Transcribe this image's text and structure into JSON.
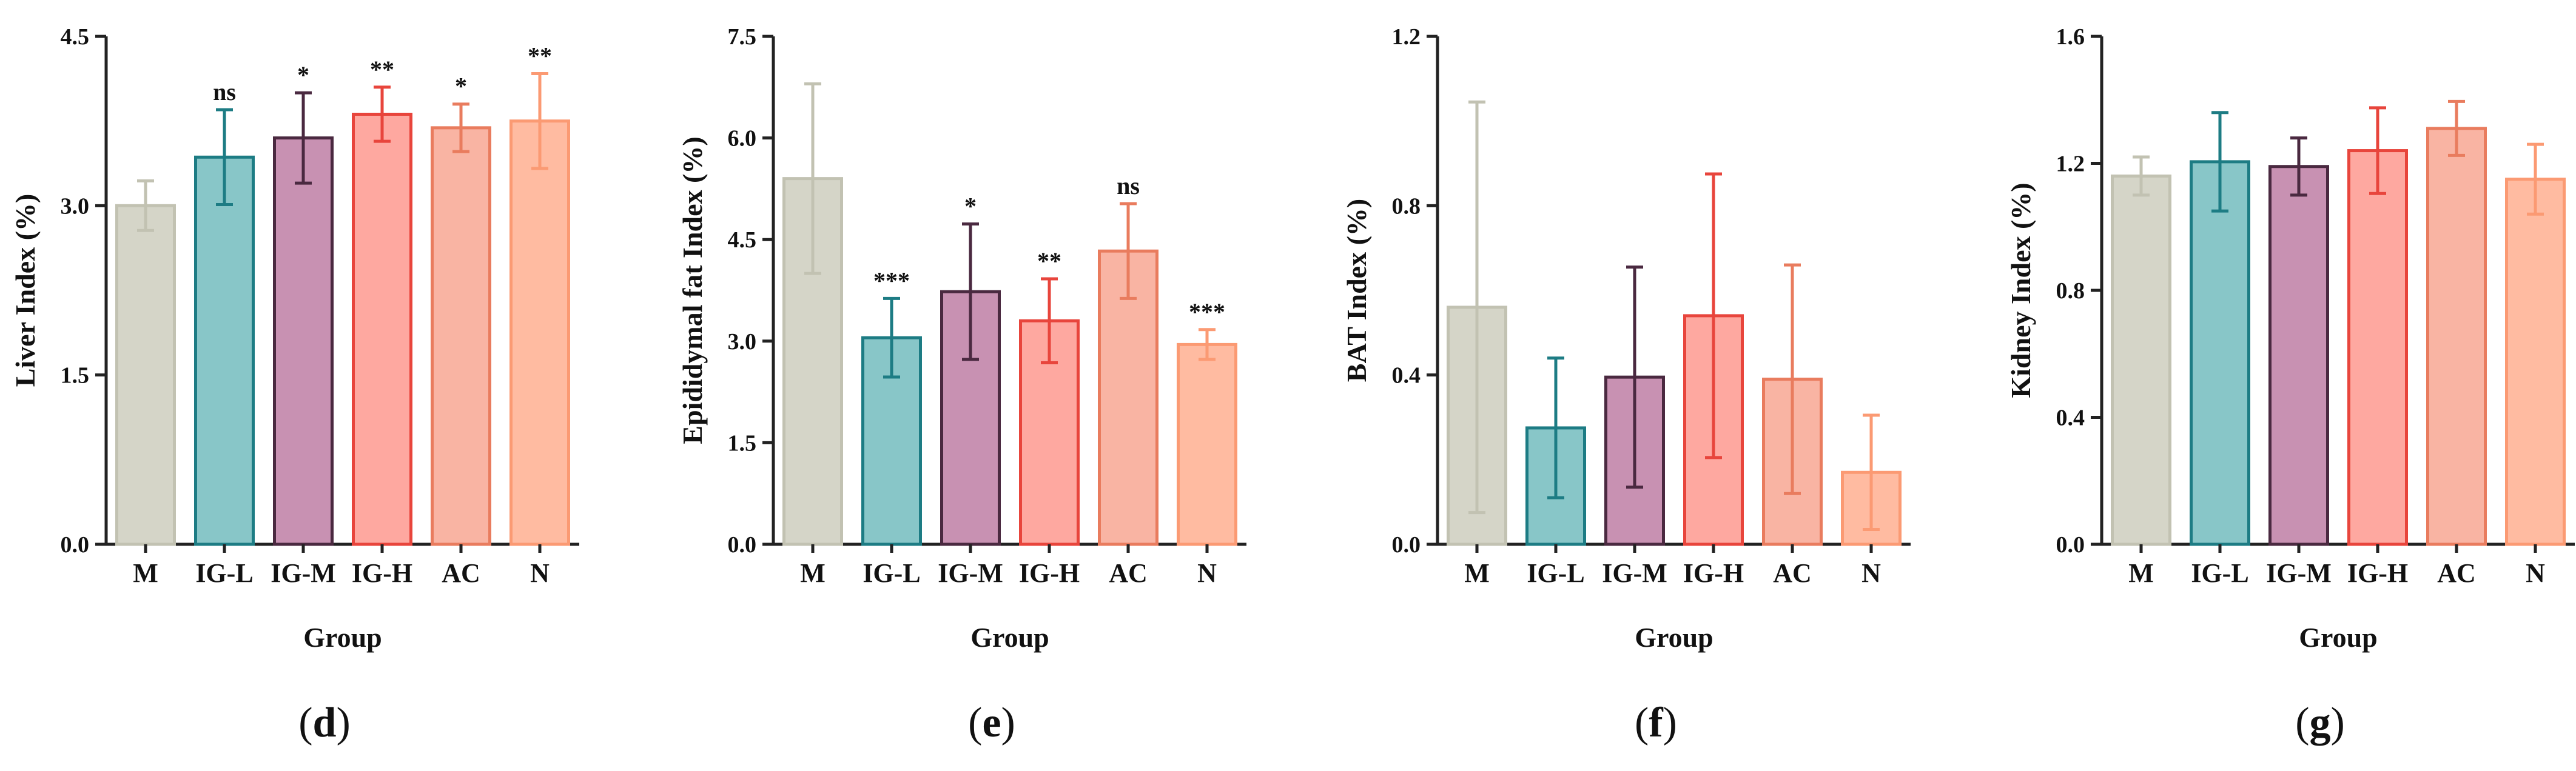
{
  "chart_data": [
    {
      "type": "bar",
      "panel_label": "d",
      "categories": [
        "M",
        "IG-L",
        "IG-M",
        "IG-H",
        "AC",
        "N"
      ],
      "values": [
        3.0,
        3.43,
        3.6,
        3.81,
        3.69,
        3.75
      ],
      "errors": [
        0.22,
        0.42,
        0.4,
        0.24,
        0.21,
        0.42
      ],
      "significance": [
        "",
        "ns",
        "*",
        "**",
        "*",
        "**"
      ],
      "ylabel": "Liver Index (%)",
      "xlabel": "Group",
      "ylim": [
        0,
        4.5
      ],
      "yticks": [
        "0.0",
        "1.5",
        "3.0",
        "4.5"
      ],
      "grid": false
    },
    {
      "type": "bar",
      "panel_label": "e",
      "categories": [
        "M",
        "IG-L",
        "IG-M",
        "IG-H",
        "AC",
        "N"
      ],
      "values": [
        5.4,
        3.05,
        3.73,
        3.3,
        4.33,
        2.95
      ],
      "errors": [
        1.4,
        0.58,
        1.0,
        0.62,
        0.7,
        0.22
      ],
      "significance": [
        "",
        "***",
        "*",
        "**",
        "ns",
        "***"
      ],
      "ylabel": "Epididymal fat Index (%)",
      "xlabel": "Group",
      "ylim": [
        0,
        7.5
      ],
      "yticks": [
        "0.0",
        "1.5",
        "3.0",
        "4.5",
        "6.0",
        "7.5"
      ],
      "grid": false
    },
    {
      "type": "bar",
      "panel_label": "f",
      "categories": [
        "M",
        "IG-L",
        "IG-M",
        "IG-H",
        "AC",
        "N"
      ],
      "values": [
        0.56,
        0.275,
        0.395,
        0.54,
        0.39,
        0.17
      ],
      "errors": [
        0.485,
        0.165,
        0.26,
        0.335,
        0.27,
        0.135
      ],
      "significance": [
        "",
        "",
        "",
        "",
        "",
        ""
      ],
      "ylabel": "BAT Index (%)",
      "xlabel": "Group",
      "ylim": [
        0,
        1.2
      ],
      "yticks": [
        "0.0",
        "0.4",
        "0.8",
        "1.2"
      ],
      "grid": false
    },
    {
      "type": "bar",
      "panel_label": "g",
      "categories": [
        "M",
        "IG-L",
        "IG-M",
        "IG-H",
        "AC",
        "N"
      ],
      "values": [
        1.16,
        1.205,
        1.19,
        1.24,
        1.31,
        1.15
      ],
      "errors": [
        0.06,
        0.155,
        0.09,
        0.135,
        0.085,
        0.11
      ],
      "significance": [
        "",
        "",
        "",
        "",
        "",
        ""
      ],
      "ylabel": "Kidney Index (%)",
      "xlabel": "Group",
      "ylim": [
        0,
        1.6
      ],
      "yticks": [
        "0.0",
        "0.4",
        "0.8",
        "1.2",
        "1.6"
      ],
      "grid": false
    }
  ],
  "series_colors": {
    "fill": [
      "#d5d5c8",
      "#88c6c8",
      "#c891b2",
      "#fea8a0",
      "#f9b4a3",
      "#ffbba1"
    ],
    "stroke": [
      "#c2c2b2",
      "#1d7c84",
      "#4a2940",
      "#e8453c",
      "#e97c5e",
      "#fb9a73"
    ]
  }
}
